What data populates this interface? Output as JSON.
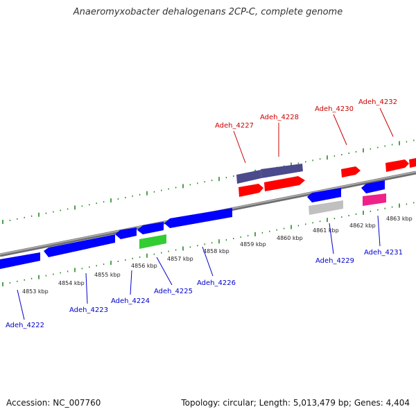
{
  "title": "Anaeromyxobacter dehalogenans 2CP-C, complete genome",
  "footer": {
    "accession": "Accession: NC_007760",
    "summary": "Topology: circular; Length: 5,013,479 bp; Genes: 4,404"
  },
  "colors": {
    "forward_strand_gene": "#ff0000",
    "reverse_strand_gene": "#0000ff",
    "forward_label": "#cc0000",
    "reverse_label": "#0000cc",
    "backbone": "#8a8a8a",
    "ticks": "#228822",
    "grey_feature": "#c0c0c0",
    "slate_feature": "#4a4a8c",
    "green_feature": "#33cc33",
    "pink_feature": "#ee2288"
  },
  "ruler": {
    "unit": "kbp",
    "labels": [
      "4853 kbp",
      "4854 kbp",
      "4855 kbp",
      "4856 kbp",
      "4857 kbp",
      "4858 kbp",
      "4859 kbp",
      "4860 kbp",
      "4861 kbp",
      "4862 kbp",
      "4863 kbp"
    ]
  },
  "genes_forward": [
    {
      "id": "Adeh_4227"
    },
    {
      "id": "Adeh_4228"
    },
    {
      "id": "Adeh_4230"
    },
    {
      "id": "Adeh_4232"
    }
  ],
  "genes_reverse": [
    {
      "id": "Adeh_4222"
    },
    {
      "id": "Adeh_4223"
    },
    {
      "id": "Adeh_4224"
    },
    {
      "id": "Adeh_4225"
    },
    {
      "id": "Adeh_4226"
    },
    {
      "id": "Adeh_4229"
    },
    {
      "id": "Adeh_4231"
    }
  ]
}
